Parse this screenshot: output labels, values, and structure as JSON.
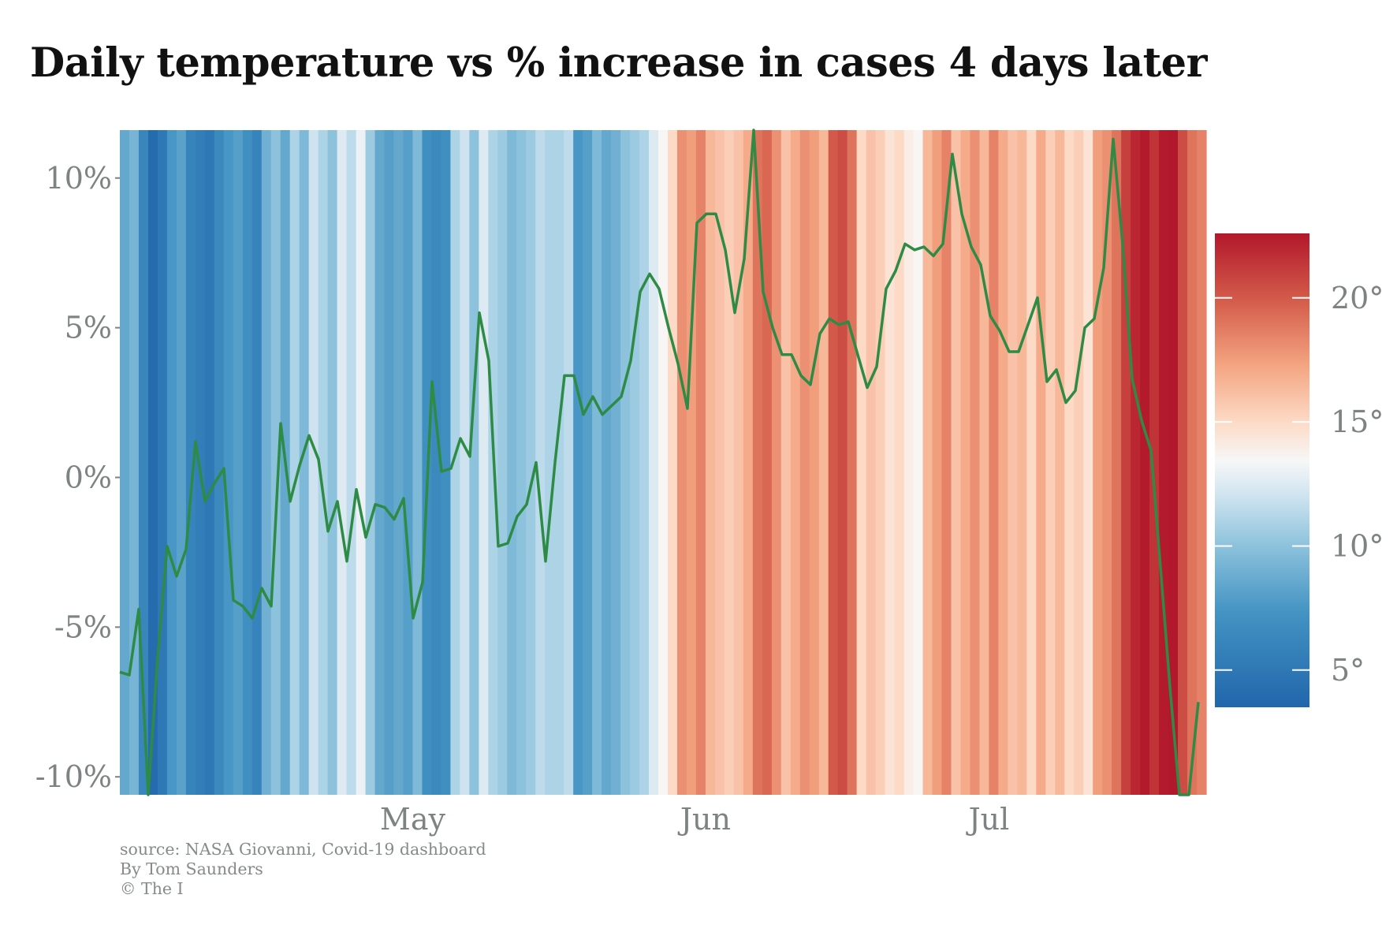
{
  "chart_data": {
    "type": "line",
    "title": "Daily temperature vs % increase in cases 4 days later",
    "background": "daily temperature warming stripes (one stripe per day, coloured by temperature)",
    "x_labels": [
      "May",
      "Jun",
      "Jul"
    ],
    "ylim": [
      -10.6,
      11.6
    ],
    "yticks": [
      10,
      5,
      0,
      -5,
      -10
    ],
    "ytick_labels": [
      "10%",
      "5%",
      "0%",
      "-5%",
      "-10%"
    ],
    "grid": false,
    "series": [
      {
        "color": "#2e8b45",
        "values": [
          -6.5,
          -6.6,
          -4.4,
          -10.8,
          -6.0,
          -2.3,
          -3.3,
          -2.4,
          1.2,
          -0.8,
          -0.2,
          0.3,
          -4.1,
          -4.3,
          -4.7,
          -3.7,
          -4.3,
          1.8,
          -0.8,
          0.4,
          1.4,
          0.6,
          -1.8,
          -0.8,
          -2.8,
          -0.4,
          -2.0,
          -0.9,
          -1.0,
          -1.4,
          -0.7,
          -4.7,
          -3.5,
          3.2,
          0.2,
          0.3,
          1.3,
          0.7,
          5.5,
          3.9,
          -2.3,
          -2.2,
          -1.3,
          -0.9,
          0.5,
          -2.8,
          0.5,
          3.4,
          3.4,
          2.1,
          2.7,
          2.1,
          2.4,
          2.7,
          3.9,
          6.2,
          6.8,
          6.3,
          5.0,
          3.8,
          2.3,
          8.5,
          8.8,
          8.8,
          7.6,
          5.5,
          7.3,
          11.6,
          6.2,
          5.0,
          4.1,
          4.1,
          3.4,
          3.1,
          4.8,
          5.3,
          5.1,
          5.2,
          4.1,
          3.0,
          3.7,
          6.3,
          6.9,
          7.8,
          7.6,
          7.7,
          7.4,
          7.8,
          10.8,
          8.8,
          7.7,
          7.1,
          5.4,
          4.9,
          4.2,
          4.2,
          5.1,
          6.0,
          3.2,
          3.6,
          2.5,
          2.9,
          5.0,
          5.3,
          7.0,
          11.3,
          7.8,
          3.3,
          1.9,
          0.9,
          -3.0,
          -7.0,
          -10.6,
          -10.6,
          -7.5
        ]
      }
    ],
    "temperature_stripes": [
      8.5,
      9.2,
      6.2,
      4.0,
      5.0,
      7.5,
      8.2,
      6.0,
      5.5,
      5.0,
      6.5,
      7.5,
      8.0,
      7.0,
      6.0,
      9.0,
      10.0,
      8.5,
      11.0,
      9.5,
      12.0,
      11.0,
      10.0,
      12.5,
      11.5,
      13.0,
      10.5,
      8.5,
      8.0,
      8.5,
      8.0,
      9.5,
      7.0,
      6.5,
      7.0,
      11.0,
      12.0,
      10.0,
      12.5,
      11.0,
      10.5,
      9.5,
      10.0,
      10.5,
      11.5,
      11.0,
      11.0,
      11.5,
      7.5,
      8.0,
      9.5,
      8.5,
      9.0,
      10.0,
      10.5,
      11.0,
      12.5,
      13.5,
      15.0,
      18.0,
      17.5,
      18.5,
      16.5,
      16.0,
      15.5,
      16.0,
      17.0,
      19.0,
      19.5,
      18.0,
      16.0,
      17.0,
      18.0,
      17.5,
      16.5,
      20.0,
      20.5,
      19.0,
      15.0,
      16.0,
      15.5,
      14.5,
      15.0,
      14.0,
      13.5,
      16.5,
      17.5,
      18.5,
      16.0,
      17.0,
      18.0,
      16.5,
      18.5,
      17.0,
      16.0,
      16.5,
      15.0,
      17.0,
      15.5,
      16.5,
      15.0,
      15.5,
      14.5,
      17.5,
      18.0,
      19.0,
      21.0,
      22.0,
      22.5,
      21.5,
      22.5,
      23.0,
      20.5,
      19.0,
      18.5
    ],
    "colorbar": {
      "range": [
        3.5,
        22.6
      ],
      "ticks": [
        5,
        10,
        15,
        20
      ],
      "tick_labels": [
        "5°",
        "10°",
        "15°",
        "20°"
      ]
    },
    "colors": {
      "line": "#2e8b45",
      "cold": "#2166ac",
      "neutral": "#f7f7f7",
      "warm": "#b2182b",
      "axis_text": "#7d8282"
    }
  },
  "credits": {
    "source": "source: NASA Giovanni, Covid-19 dashboard",
    "author": "By Tom Saunders",
    "publisher": "© The I"
  }
}
